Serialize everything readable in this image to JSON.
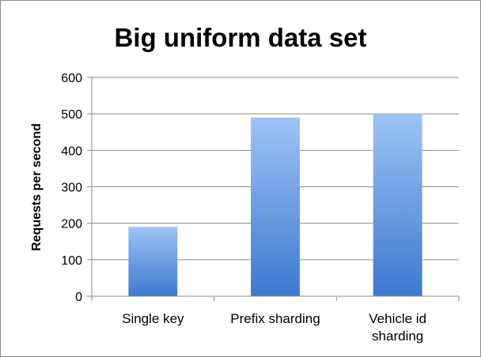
{
  "chart_data": {
    "type": "bar",
    "title": "Big uniform data set",
    "xlabel": "",
    "ylabel": "Requests per second",
    "categories": [
      [
        "Single key"
      ],
      [
        "Prefix sharding"
      ],
      [
        "Vehicle id",
        "sharding"
      ]
    ],
    "values": [
      190,
      490,
      500
    ],
    "ylim": [
      0,
      600
    ],
    "yticks": [
      0,
      100,
      200,
      300,
      400,
      500,
      600
    ],
    "grid": true,
    "legend": "none",
    "colors": {
      "bar_top": "#9ec3f5",
      "bar_bottom": "#3d79cf",
      "grid": "#8c8c8c",
      "axis": "#8c8c8c"
    }
  }
}
